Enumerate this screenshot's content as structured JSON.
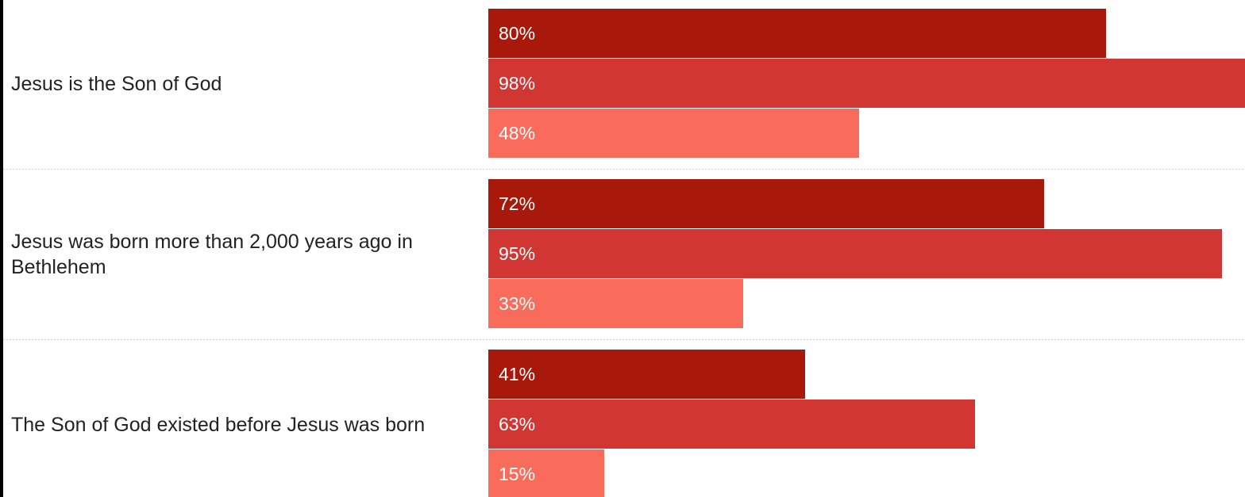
{
  "chart_data": {
    "type": "bar",
    "orientation": "horizontal",
    "categories": [
      "Jesus is the Son of God",
      "Jesus was born more than 2,000 years ago in Bethlehem",
      "The Son of God existed before Jesus was born"
    ],
    "category_lines": [
      [
        "Jesus is the Son of God"
      ],
      [
        "Jesus was born more than 2,000 years ago in",
        "Bethlehem"
      ],
      [
        "The Son of God existed before Jesus was born"
      ]
    ],
    "series": [
      {
        "values": [
          80,
          72,
          41
        ],
        "labels": [
          "80%",
          "72%",
          "41%"
        ],
        "color": "#a8190b"
      },
      {
        "values": [
          98,
          95,
          63
        ],
        "labels": [
          "98%",
          "95%",
          "63%"
        ],
        "color": "#d13633"
      },
      {
        "values": [
          48,
          33,
          15
        ],
        "labels": [
          "48%",
          "33%",
          "15%"
        ],
        "color": "#f96b5a"
      }
    ],
    "xlim": [
      0,
      98
    ],
    "grid": false,
    "legend": "none"
  }
}
